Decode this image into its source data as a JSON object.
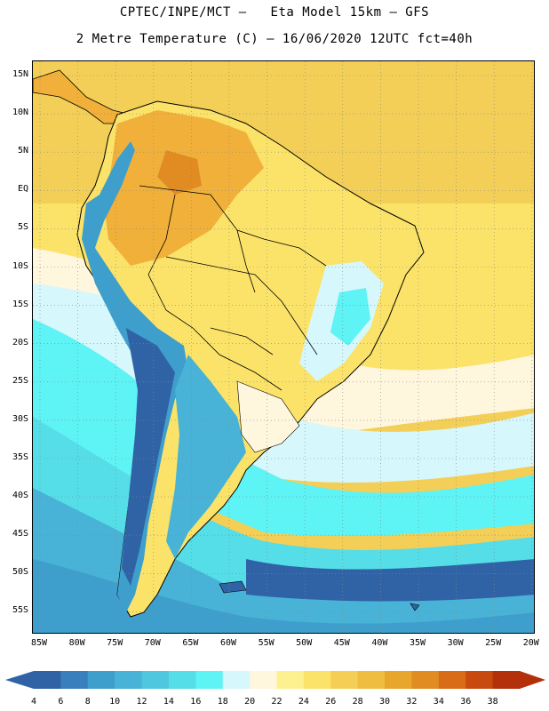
{
  "header": {
    "line1": "CPTEC/INPE/MCT –   Eta Model 15km – GFS",
    "line2": "2 Metre Temperature (C) – 16/06/2020 12UTC fct=40h"
  },
  "lat_labels": [
    "15N",
    "10N",
    "5N",
    "EQ",
    "5S",
    "10S",
    "15S",
    "20S",
    "25S",
    "30S",
    "35S",
    "40S",
    "45S",
    "50S",
    "55S"
  ],
  "lon_labels": [
    "85W",
    "80W",
    "75W",
    "70W",
    "65W",
    "60W",
    "55W",
    "50W",
    "45W",
    "40W",
    "35W",
    "30W",
    "25W",
    "20W"
  ],
  "colorbar": {
    "ticks": [
      "4",
      "6",
      "8",
      "10",
      "12",
      "14",
      "16",
      "18",
      "20",
      "22",
      "24",
      "26",
      "28",
      "30",
      "32",
      "34",
      "36",
      "38"
    ],
    "colors": [
      "#2f63a6",
      "#3a7fbd",
      "#3f9fcc",
      "#48b3d6",
      "#4fc7df",
      "#55dde8",
      "#5ef3f5",
      "#d6f7fb",
      "#fff6de",
      "#fdf08e",
      "#fbe36a",
      "#f5cf55",
      "#efbd3f",
      "#e8a62c",
      "#e08c22",
      "#d96c17",
      "#c94a0e",
      "#b3300a"
    ]
  },
  "colors": {
    "ocean_warm": "#f3cf57",
    "ocean_cool": "#55dde8",
    "ocean_cold": "#2f63a6",
    "land_hot": "#f0b03a",
    "land_warm": "#fbe36a"
  }
}
